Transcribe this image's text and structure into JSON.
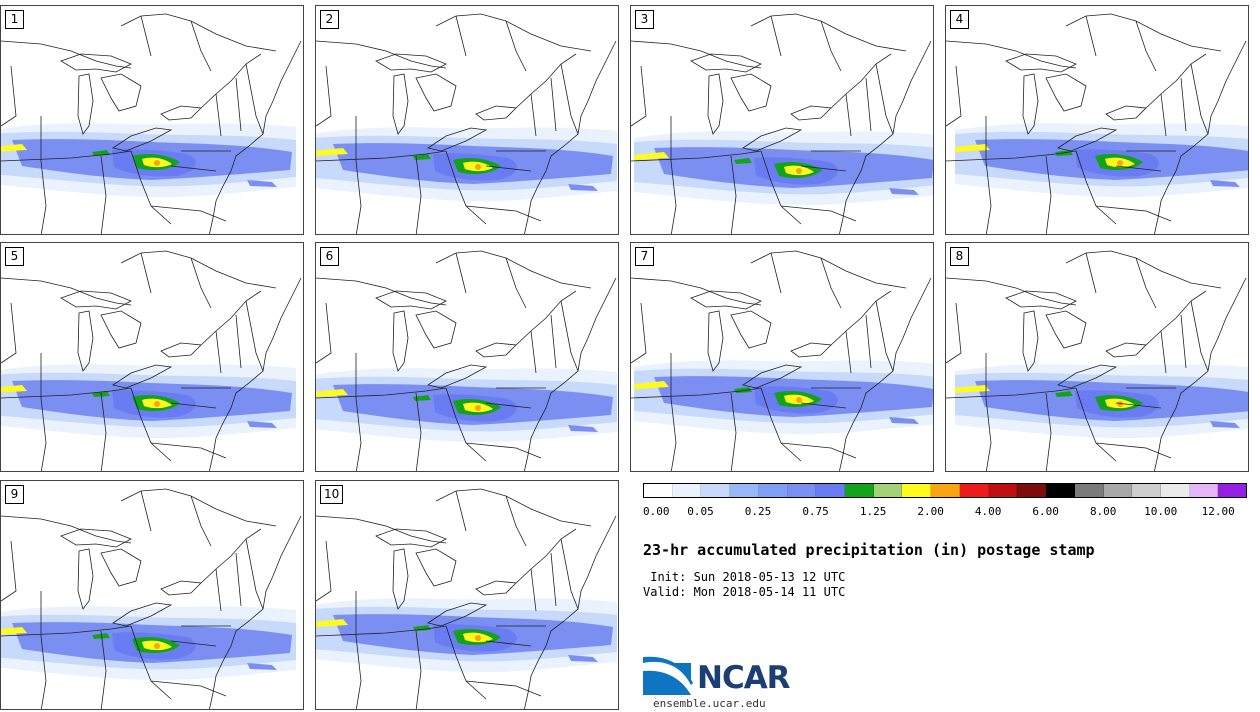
{
  "stamps": [
    {
      "label": "1"
    },
    {
      "label": "2"
    },
    {
      "label": "3"
    },
    {
      "label": "4"
    },
    {
      "label": "5"
    },
    {
      "label": "6"
    },
    {
      "label": "7"
    },
    {
      "label": "8"
    },
    {
      "label": "9"
    },
    {
      "label": "10"
    }
  ],
  "colorbar": {
    "colors": [
      "#ffffff",
      "#e9f2fd",
      "#c7dafb",
      "#97b7f8",
      "#7f9ff5",
      "#7b8ff3",
      "#6a7cf2",
      "#13a31b",
      "#a4d277",
      "#fefb1d",
      "#fba412",
      "#ec1b1d",
      "#bd0f10",
      "#7b0d0c",
      "#000000",
      "#7b7b7b",
      "#a8a8a8",
      "#cecece",
      "#ebebeb",
      "#e4b6f7",
      "#9320e3"
    ],
    "labels": [
      "0.00",
      "0.05",
      "0.25",
      "0.75",
      "1.25",
      "2.00",
      "4.00",
      "6.00",
      "8.00",
      "10.00",
      "12.00"
    ]
  },
  "title": "23-hr accumulated precipitation (in) postage stamp",
  "init": " Init: Sun 2018-05-13 12 UTC",
  "valid": "Valid: Mon 2018-05-14 11 UTC",
  "logo": {
    "name": "NCAR",
    "url": "ensemble.ucar.edu"
  }
}
